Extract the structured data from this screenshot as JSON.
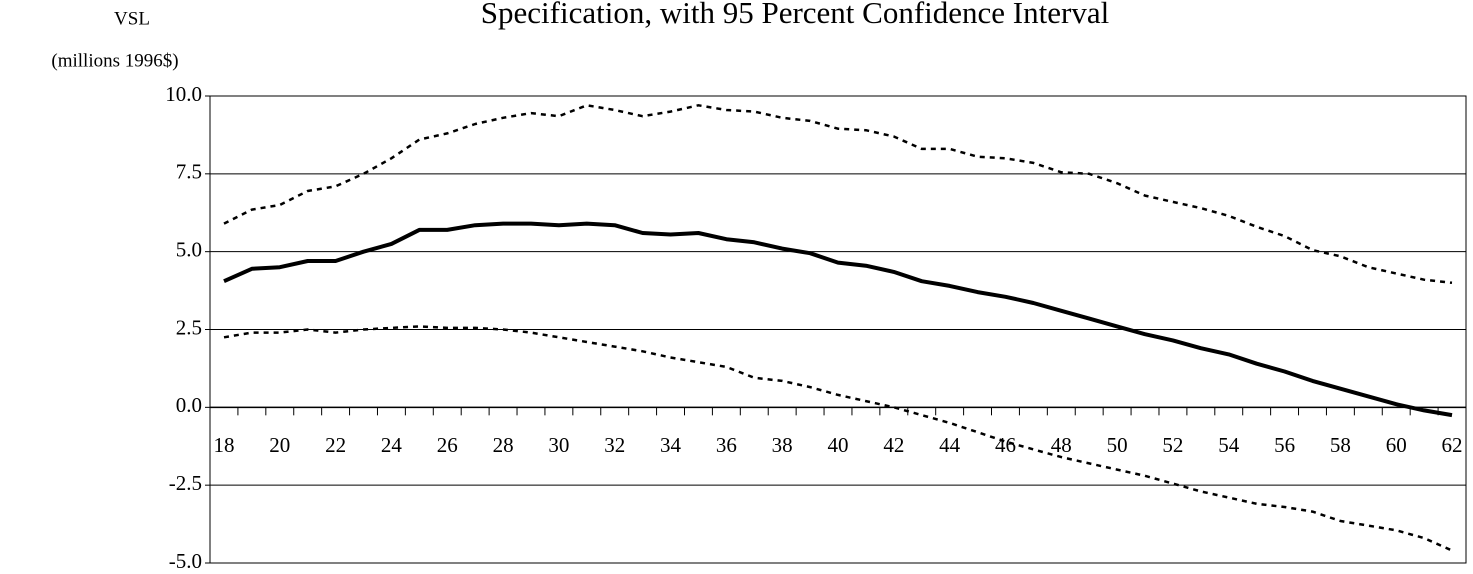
{
  "chart_data": {
    "type": "line",
    "title": "Specification, with 95 Percent Confidence Interval",
    "y_label": "VSL",
    "y_unit": "(millions 1996$)",
    "categories": [
      18,
      null,
      20,
      null,
      22,
      null,
      24,
      null,
      26,
      null,
      28,
      null,
      30,
      null,
      32,
      null,
      34,
      null,
      36,
      null,
      38,
      null,
      40,
      null,
      42,
      null,
      44,
      null,
      46,
      null,
      48,
      null,
      50,
      null,
      52,
      null,
      54,
      null,
      56,
      null,
      58,
      null,
      60,
      null,
      62
    ],
    "series": [
      {
        "color": "#000000",
        "style": "solid",
        "values": [
          4.05,
          4.45,
          4.5,
          4.7,
          4.7,
          5.0,
          5.25,
          5.7,
          5.7,
          5.85,
          5.9,
          5.9,
          5.85,
          5.9,
          5.85,
          5.6,
          5.55,
          5.6,
          5.4,
          5.3,
          5.1,
          4.95,
          4.65,
          4.55,
          4.35,
          4.05,
          3.9,
          3.7,
          3.55,
          3.35,
          3.1,
          2.85,
          2.6,
          2.35,
          2.15,
          1.9,
          1.7,
          1.4,
          1.15,
          0.85,
          0.6,
          0.35,
          0.1,
          -0.1,
          -0.25
        ]
      },
      {
        "color": "#000000",
        "style": "dotted",
        "values": [
          5.9,
          6.35,
          6.5,
          6.95,
          7.1,
          7.5,
          8.0,
          8.6,
          8.8,
          9.1,
          9.3,
          9.45,
          9.35,
          9.7,
          9.55,
          9.35,
          9.5,
          9.7,
          9.55,
          9.5,
          9.3,
          9.2,
          8.95,
          8.9,
          8.7,
          8.3,
          8.3,
          8.05,
          8.0,
          7.85,
          7.55,
          7.5,
          7.2,
          6.8,
          6.6,
          6.4,
          6.15,
          5.8,
          5.5,
          5.05,
          4.85,
          4.5,
          4.3,
          4.1,
          4.0
        ]
      },
      {
        "color": "#000000",
        "style": "dotted",
        "values": [
          2.25,
          2.4,
          2.4,
          2.5,
          2.4,
          2.5,
          2.55,
          2.6,
          2.55,
          2.55,
          2.5,
          2.4,
          2.25,
          2.1,
          1.95,
          1.8,
          1.6,
          1.45,
          1.3,
          0.95,
          0.85,
          0.65,
          0.4,
          0.2,
          0.0,
          -0.25,
          -0.5,
          -0.8,
          -1.1,
          -1.35,
          -1.6,
          -1.8,
          -2.0,
          -2.2,
          -2.45,
          -2.7,
          -2.9,
          -3.1,
          -3.2,
          -3.35,
          -3.65,
          -3.8,
          -3.95,
          -4.2,
          -4.6
        ]
      }
    ],
    "ylim": [
      -5,
      10
    ],
    "yticks": [
      {
        "value": -5,
        "label": "-5.0"
      },
      -2.5,
      {
        "value": 0,
        "label": "0.0"
      },
      2.5,
      {
        "value": 5,
        "label": "5.0"
      },
      7.5,
      {
        "value": 10,
        "label": "10.0"
      }
    ],
    "grid": true
  }
}
